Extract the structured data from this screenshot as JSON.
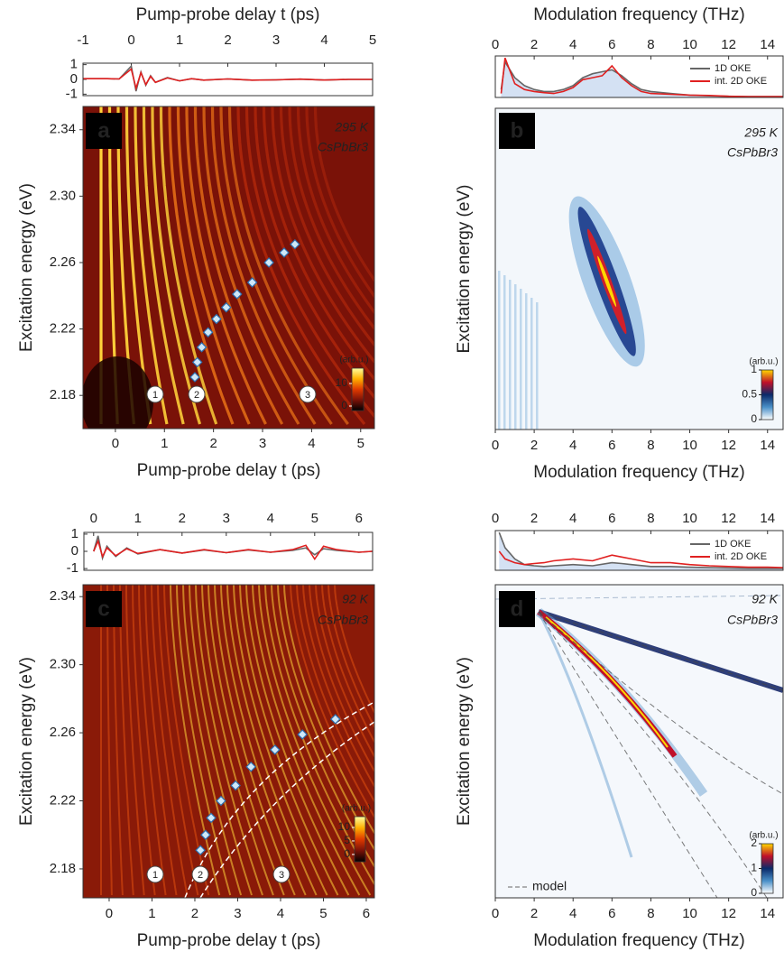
{
  "chart_data": [
    {
      "type": "heatmap",
      "label": "a",
      "top_xlabel": "Pump-probe delay t (ps)",
      "xlabel": "Pump-probe delay t (ps)",
      "ylabel": "Excitation energy (eV)",
      "annotations": [
        "295 K",
        "CsPbBr3"
      ],
      "circled": [
        "1",
        "2",
        "3"
      ],
      "xlim": [
        -0.66,
        5.28
      ],
      "xticks": [
        0,
        1,
        2,
        3,
        4,
        5
      ],
      "ylim": [
        2.16,
        2.354
      ],
      "yticks": [
        2.18,
        2.22,
        2.26,
        {
          "value": 2.3,
          "label": "2.30"
        },
        2.34
      ],
      "markers": {
        "x": [
          1.62,
          1.67,
          1.76,
          1.89,
          2.06,
          2.26,
          2.48,
          2.79,
          3.13,
          3.44,
          3.66
        ],
        "y": [
          2.191,
          2.2,
          2.209,
          2.218,
          2.226,
          2.233,
          2.241,
          2.248,
          2.26,
          2.266,
          2.271
        ]
      },
      "colorbar": {
        "label": "(arb.u.)",
        "lim": [
          -2,
          16.8
        ],
        "ticks": [
          0,
          10
        ],
        "colors": [
          "#000000",
          "#7a1208",
          "#e03a00",
          "#ffb000",
          "#ffffa0"
        ]
      },
      "top": {
        "xlim": [
          -1,
          5
        ],
        "xticks": [
          -1,
          0,
          1,
          2,
          3,
          4,
          5
        ],
        "ylim": [
          -1.1,
          1.1
        ],
        "yticks": [
          -1,
          0,
          1
        ],
        "x": [
          -1,
          -0.75,
          -0.5,
          -0.25,
          0,
          0.1,
          0.2,
          0.3,
          0.4,
          0.5,
          0.75,
          1,
          1.25,
          1.5,
          2,
          2.5,
          3,
          3.5,
          4,
          4.5,
          5
        ],
        "series": [
          {
            "color": "#666666",
            "values": [
              0.05,
              0.05,
              0.05,
              0.03,
              0.9,
              -0.8,
              0.5,
              -0.4,
              0.25,
              -0.2,
              0.12,
              -0.1,
              0.05,
              -0.05,
              0.03,
              -0.05,
              -0.03,
              0.02,
              -0.04,
              0,
              0
            ]
          },
          {
            "color": "#e02020",
            "values": [
              0.05,
              0.05,
              0.05,
              0.03,
              0.7,
              -0.6,
              0.45,
              -0.35,
              0.2,
              -0.2,
              0.1,
              -0.1,
              0.05,
              -0.05,
              0.03,
              -0.05,
              -0.03,
              0.02,
              -0.04,
              0,
              0
            ]
          }
        ]
      }
    },
    {
      "type": "heatmap",
      "label": "b",
      "top_xlabel": "Modulation frequency (THz)",
      "xlabel": "Modulation frequency (THz)",
      "ylabel": "Excitation energy (eV)",
      "annotations": [
        "295 K",
        "CsPbBr3"
      ],
      "xlim": [
        0,
        14.8
      ],
      "xticks": [
        0,
        2,
        4,
        6,
        8,
        10,
        12,
        14
      ],
      "colorbar": {
        "label": "(arb.u.)",
        "lim": [
          0,
          1
        ],
        "ticks": [
          0,
          0.5,
          1
        ],
        "colors": [
          "#ffffff",
          "#4a90c8",
          "#0a2a6a",
          "#c0102a",
          "#ffd800"
        ]
      },
      "top": {
        "xlim": [
          0,
          14.8
        ],
        "xticks": [
          0,
          2,
          4,
          6,
          8,
          10,
          12,
          14
        ],
        "ylim": [
          0,
          1.05
        ],
        "x": [
          0.3,
          0.5,
          1,
          1.5,
          2,
          2.5,
          3,
          3.5,
          4,
          4.5,
          5,
          5.5,
          6,
          6.5,
          7,
          7.5,
          8,
          9,
          10,
          11,
          12,
          13,
          14,
          14.8
        ],
        "series": [
          {
            "name": "1D OKE",
            "color": "#666666",
            "values": [
              0.2,
              0.9,
              0.5,
              0.3,
              0.2,
              0.15,
              0.15,
              0.2,
              0.3,
              0.5,
              0.6,
              0.65,
              0.7,
              0.55,
              0.35,
              0.2,
              0.15,
              0.1,
              0.06,
              0.04,
              0.03,
              0.02,
              0.02,
              0.02
            ]
          },
          {
            "name": "int. 2D OKE",
            "color": "#e02020",
            "values": [
              0.1,
              1.0,
              0.35,
              0.2,
              0.15,
              0.12,
              0.1,
              0.15,
              0.25,
              0.45,
              0.5,
              0.55,
              0.8,
              0.5,
              0.3,
              0.15,
              0.1,
              0.08,
              0.06,
              0.05,
              0.03,
              0.02,
              0.02,
              0.02
            ]
          }
        ]
      }
    },
    {
      "type": "heatmap",
      "label": "c",
      "xlabel": "Pump-probe delay t (ps)",
      "ylabel": "Excitation energy (eV)",
      "annotations": [
        "92 K",
        "CsPbBr3"
      ],
      "circled": [
        "1",
        "2",
        "3"
      ],
      "xlim": [
        -0.61,
        6.19
      ],
      "xticks": [
        0,
        1,
        2,
        3,
        4,
        5,
        6
      ],
      "ylim": [
        2.163,
        2.347
      ],
      "yticks": [
        2.18,
        2.22,
        2.26,
        {
          "value": 2.3,
          "label": "2.30"
        },
        2.34
      ],
      "markers": {
        "x": [
          2.13,
          2.25,
          2.38,
          2.61,
          2.95,
          3.31,
          3.87,
          4.51,
          5.28
        ],
        "y": [
          2.191,
          2.2,
          2.21,
          2.22,
          2.229,
          2.24,
          2.25,
          2.259,
          2.268
        ]
      },
      "colorbar": {
        "label": "(arb.u.)",
        "lim": [
          -2.7,
          14
        ],
        "ticks": [
          0,
          5,
          10
        ],
        "colors": [
          "#000000",
          "#7a1208",
          "#e03a00",
          "#ffb000",
          "#ffffa0"
        ]
      },
      "top": {
        "xlim": [
          -0.22,
          6.31
        ],
        "xticks": [
          0,
          1,
          2,
          3,
          4,
          5,
          6
        ],
        "ylim": [
          -1.1,
          1.1
        ],
        "yticks": [
          -1,
          0,
          1
        ],
        "x": [
          0,
          0.1,
          0.2,
          0.3,
          0.5,
          0.75,
          1,
          1.5,
          2,
          2.5,
          3,
          3.5,
          4,
          4.5,
          4.8,
          5,
          5.2,
          5.5,
          6,
          6.3
        ],
        "series": [
          {
            "color": "#666666",
            "values": [
              0,
              0.9,
              -0.4,
              0.3,
              -0.3,
              0.2,
              -0.15,
              0.1,
              -0.1,
              0.08,
              -0.08,
              0.08,
              -0.05,
              0.05,
              0.2,
              -0.2,
              0.15,
              0.05,
              -0.05,
              0
            ]
          },
          {
            "color": "#e02020",
            "values": [
              0,
              0.6,
              -0.3,
              0.2,
              -0.25,
              0.15,
              -0.12,
              0.1,
              -0.1,
              0.1,
              -0.08,
              0.1,
              -0.05,
              0.1,
              0.35,
              -0.45,
              0.3,
              0.1,
              -0.05,
              0
            ]
          }
        ]
      }
    },
    {
      "type": "heatmap",
      "label": "d",
      "xlabel": "Modulation frequency (THz)",
      "ylabel": "Excitation energy (eV)",
      "annotations": [
        "92 K",
        "CsPbBr3"
      ],
      "model_label": "model",
      "xlim": [
        0,
        14.8
      ],
      "xticks": [
        0,
        2,
        4,
        6,
        8,
        10,
        12,
        14
      ],
      "colorbar": {
        "label": "(arb.u.)",
        "lim": [
          0,
          2
        ],
        "ticks": [
          0,
          1,
          2
        ],
        "colors": [
          "#ffffff",
          "#4a90c8",
          "#0a2a6a",
          "#c0102a",
          "#ffd800"
        ]
      },
      "top": {
        "xlim": [
          0,
          14.8
        ],
        "xticks": [
          0,
          2,
          4,
          6,
          8,
          10,
          12,
          14
        ],
        "ylim": [
          0,
          1.05
        ],
        "x": [
          0.2,
          0.5,
          1,
          1.5,
          2,
          2.5,
          3,
          4,
          5,
          6,
          6.5,
          7,
          8,
          9,
          10,
          11,
          12,
          13,
          14,
          14.8
        ],
        "series": [
          {
            "name": "1D OKE",
            "color": "#666666",
            "values": [
              1.0,
              0.6,
              0.3,
              0.15,
              0.12,
              0.1,
              0.12,
              0.15,
              0.12,
              0.2,
              0.18,
              0.15,
              0.1,
              0.1,
              0.08,
              0.07,
              0.06,
              0.05,
              0.05,
              0.05
            ]
          },
          {
            "name": "int. 2D OKE",
            "color": "#e02020",
            "values": [
              0.5,
              0.3,
              0.2,
              0.15,
              0.18,
              0.2,
              0.25,
              0.3,
              0.25,
              0.4,
              0.35,
              0.3,
              0.2,
              0.2,
              0.15,
              0.12,
              0.1,
              0.08,
              0.08,
              0.07
            ]
          }
        ]
      }
    }
  ]
}
